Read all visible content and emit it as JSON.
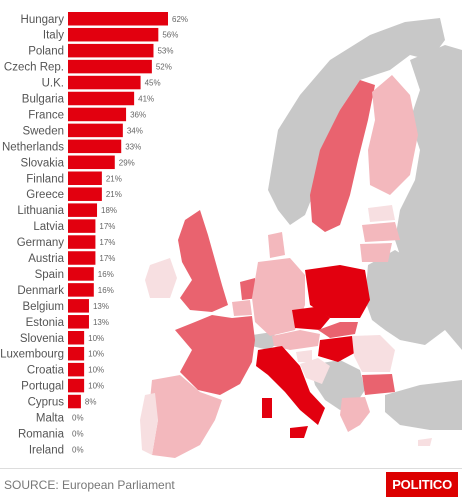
{
  "chart_data": {
    "type": "bar",
    "orientation": "horizontal",
    "categories": [
      "Hungary",
      "Italy",
      "Poland",
      "Czech Rep.",
      "U.K.",
      "Bulgaria",
      "France",
      "Sweden",
      "Netherlands",
      "Slovakia",
      "Finland",
      "Greece",
      "Lithuania",
      "Latvia",
      "Germany",
      "Austria",
      "Spain",
      "Denmark",
      "Belgium",
      "Estonia",
      "Slovenia",
      "Luxembourg",
      "Croatia",
      "Portugal",
      "Cyprus",
      "Malta",
      "Romania",
      "Ireland"
    ],
    "values": [
      62,
      56,
      53,
      52,
      45,
      41,
      36,
      34,
      33,
      29,
      21,
      21,
      18,
      17,
      17,
      17,
      16,
      16,
      13,
      13,
      10,
      10,
      10,
      10,
      8,
      0,
      0,
      0
    ],
    "value_labels": [
      "62%",
      "56%",
      "53%",
      "52%",
      "45%",
      "41%",
      "36%",
      "34%",
      "33%",
      "29%",
      "21%",
      "21%",
      "18%",
      "17%",
      "17%",
      "17%",
      "16%",
      "16%",
      "13%",
      "13%",
      "10%",
      "10%",
      "10%",
      "10%",
      "8%",
      "0%",
      "0%",
      "0%"
    ],
    "xlim": [
      0,
      62
    ],
    "bar_color": "#e2000f",
    "title": "",
    "xlabel": "",
    "ylabel": ""
  },
  "map": {
    "scale_colors": [
      "#f7dfe1",
      "#f3b8bd",
      "#ef9099",
      "#e9636f",
      "#e2000f"
    ],
    "nonmember_color": "#c8c8c8",
    "sea_color": "#ffffff"
  },
  "footer": {
    "source": "SOURCE: European Parliament",
    "logo": "POLITICO"
  }
}
